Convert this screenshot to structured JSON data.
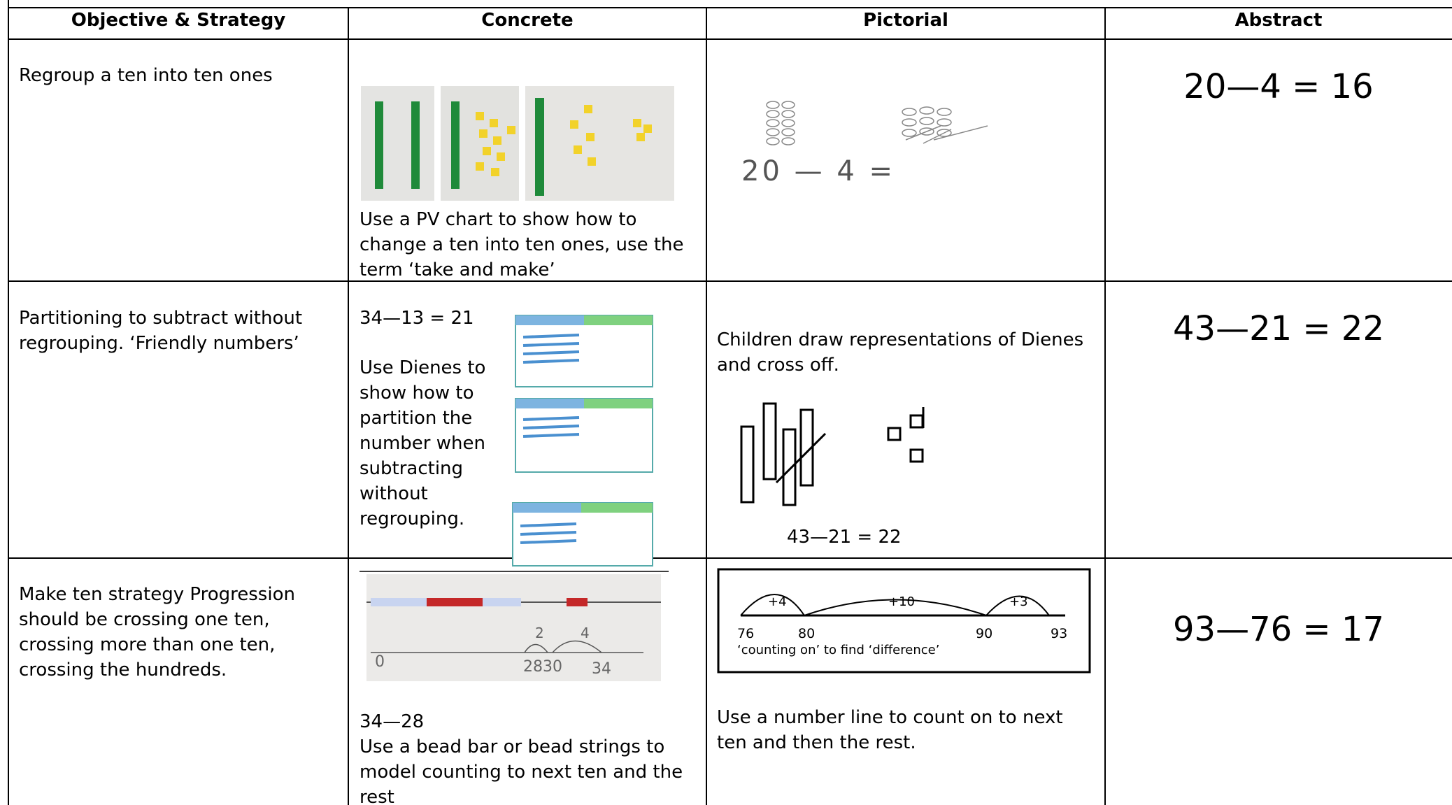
{
  "table": {
    "headers": [
      "Objective & Strategy",
      "Concrete",
      "Pictorial",
      "Abstract"
    ],
    "rows": [
      {
        "objective": "Regroup a ten into ten ones",
        "concrete": {
          "text": "Use a PV chart to show how to change a ten into ten ones, use the term ‘take and make’"
        },
        "pictorial": {
          "equation": "20 — 4 ="
        },
        "abstract": "20—4 = 16"
      },
      {
        "objective": "Partitioning to subtract without regrouping. ‘Friendly numbers’",
        "concrete": {
          "equation": "34—13 = 21",
          "text": "Use Dienes to show how to partition the number when subtracting without regrouping."
        },
        "pictorial": {
          "text": "Children draw representations of Dienes and cross off.",
          "equation": "43—21 = 22"
        },
        "abstract": "43—21 = 22"
      },
      {
        "objective": "Make ten strategy Progression should be crossing one ten, crossing more than one ten, crossing the hundreds.",
        "concrete": {
          "number_line": [
            "0",
            "28",
            "30",
            "34"
          ],
          "jumps": [
            "2",
            "4"
          ],
          "equation": "34—28",
          "text": "Use a bead bar or bead strings to model counting to next ten and the rest"
        },
        "pictorial": {
          "jumps": [
            "+4",
            "+10",
            "+3"
          ],
          "number_line": [
            "76",
            "80",
            "90",
            "93"
          ],
          "caption": "‘counting on’ to find ‘difference’",
          "text": "Use a number line to count on to next ten and then the rest."
        },
        "abstract": "93—76 = 17"
      }
    ]
  }
}
